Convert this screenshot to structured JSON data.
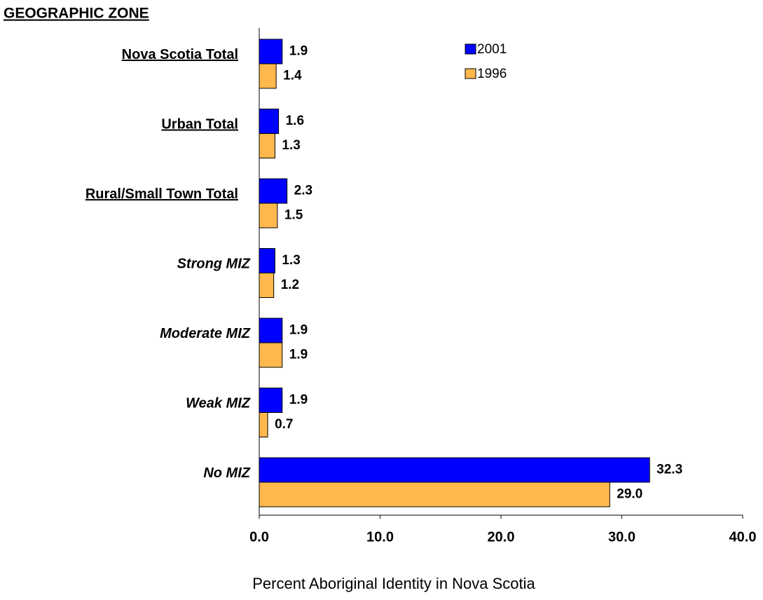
{
  "chart_data": {
    "type": "bar",
    "orientation": "horizontal",
    "title": "GEOGRAPHIC ZONE",
    "xlabel": "Percent Aboriginal Identity in Nova Scotia",
    "categories": [
      "Nova Scotia Total",
      "Urban Total",
      "Rural/Small Town Total",
      "Strong MIZ",
      "Moderate MIZ",
      "Weak MIZ",
      "No MIZ"
    ],
    "series": [
      {
        "name": "2001",
        "color": "#0000ff",
        "values": [
          1.9,
          1.6,
          2.3,
          1.3,
          1.9,
          1.9,
          32.3
        ]
      },
      {
        "name": "1996",
        "color": "#ffb84d",
        "values": [
          1.4,
          1.3,
          1.5,
          1.2,
          1.9,
          0.7,
          29.0
        ],
        "value_labels": [
          "1.4",
          "1.3",
          "1.5",
          "1.2",
          "1.9",
          "0.7",
          "29.0"
        ]
      }
    ],
    "xlim": [
      0,
      40
    ],
    "xticks": [
      {
        "value": 0,
        "label": "0.0"
      },
      {
        "value": 10,
        "label": "10.0"
      },
      {
        "value": 20,
        "label": "20.0"
      },
      {
        "value": 30,
        "label": "30.0"
      },
      {
        "value": 40,
        "label": "40.0"
      }
    ],
    "grid": false,
    "legend": "top"
  }
}
